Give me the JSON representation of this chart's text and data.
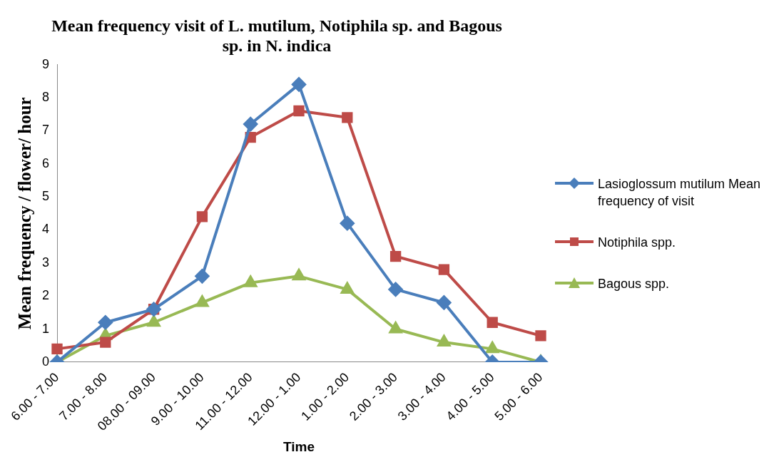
{
  "chart_data": {
    "type": "line",
    "title": "Mean frequency visit of L. mutilum, Notiphila sp. and Bagous sp. in N. indica",
    "xlabel": "Time",
    "ylabel": "Mean frequency / flower/ hour",
    "categories": [
      "6.00 - 7.00",
      "7.00 - 8.00",
      "08.00 - 09.00",
      "9.00 - 10.00",
      "11.00 - 12.00",
      "12.00 - 1.00",
      "1.00 - 2.00",
      "2.00 - 3.00",
      "3.00 - 4.00",
      "4.00 - 5.00",
      "5.00 - 6.00"
    ],
    "series": [
      {
        "name": "Lasioglossum mutilum Mean frequency of visit",
        "color": "#4a7ebb",
        "marker": "diamond",
        "values": [
          0,
          1.2,
          1.6,
          2.6,
          7.2,
          8.4,
          4.2,
          2.2,
          1.8,
          0,
          0
        ]
      },
      {
        "name": "Notiphila spp.",
        "color": "#be4b48",
        "marker": "square",
        "values": [
          0.4,
          0.6,
          1.6,
          4.4,
          6.8,
          7.6,
          7.4,
          3.2,
          2.8,
          1.2,
          0.8
        ]
      },
      {
        "name": "Bagous spp.",
        "color": "#98b954",
        "marker": "triangle",
        "values": [
          0,
          0.8,
          1.2,
          1.8,
          2.4,
          2.6,
          2.2,
          1.0,
          0.6,
          0.4,
          0
        ]
      }
    ],
    "ylim": [
      0,
      9
    ],
    "yticks": [
      0,
      1,
      2,
      3,
      4,
      5,
      6,
      7,
      8,
      9
    ],
    "grid": false,
    "legend": "right",
    "line_style": "solid"
  }
}
